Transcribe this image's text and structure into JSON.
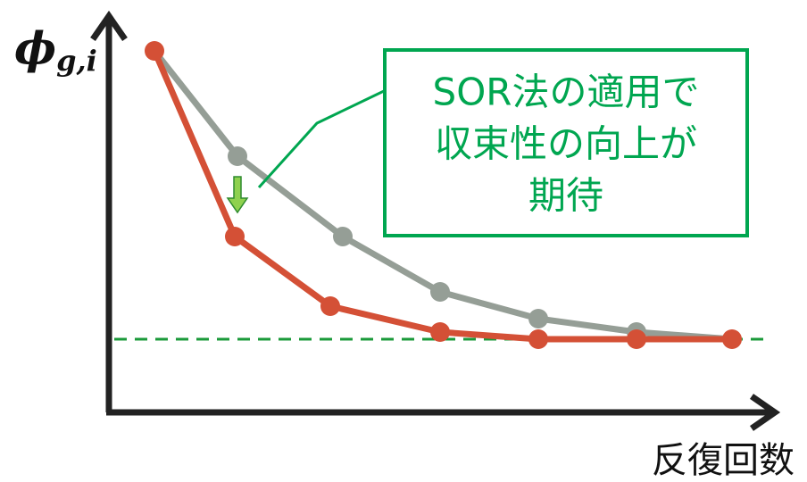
{
  "y_axis_label": {
    "symbol": "ϕ",
    "subscript": "g,i"
  },
  "x_axis_label": "反復回数",
  "callout": {
    "lines": [
      "SOR法の適用で",
      "収束性の向上が",
      "期待"
    ]
  }
}
